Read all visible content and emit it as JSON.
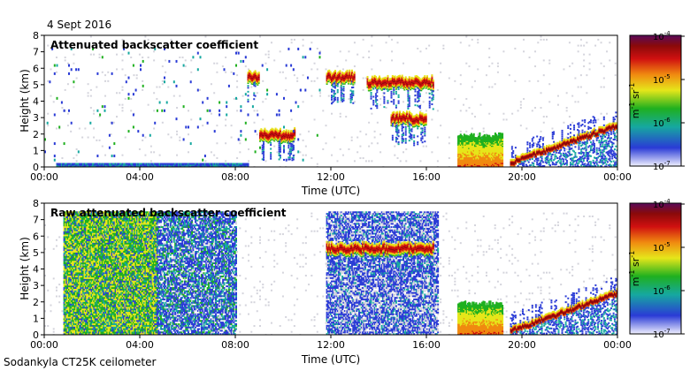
{
  "date_label": "4 Sept 2016",
  "footer_label": "Sodankyla CT25K ceilometer",
  "colors": {
    "background_noise": "#d4d4dc",
    "colormap": [
      "#f0f0ff",
      "#2a3bd6",
      "#16a8a0",
      "#1fb01f",
      "#e6e61a",
      "#f08a10",
      "#d01010",
      "#8a0a0a",
      "#5a0a5a"
    ],
    "axis": "#000000"
  },
  "chart_data": [
    {
      "type": "heatmap",
      "title": "Attenuated backscatter coefficient",
      "xlabel": "Time (UTC)",
      "ylabel": "Height (km)",
      "x_ticks": [
        "00:00",
        "04:00",
        "08:00",
        "12:00",
        "16:00",
        "20:00",
        "00:00"
      ],
      "x_tick_hours": [
        0,
        4,
        8,
        12,
        16,
        20,
        24
      ],
      "y_ticks": [
        0,
        1,
        2,
        3,
        4,
        5,
        6,
        7,
        8
      ],
      "xlim": [
        0,
        24
      ],
      "ylim": [
        0,
        8
      ],
      "colorbar": {
        "ticks": [
          "10",
          "10",
          "10",
          "10"
        ],
        "exponents": [
          "-7",
          "-6",
          "-5",
          "-4"
        ],
        "label_base": "m",
        "label_exp1": "-1",
        "label_mid": " sr",
        "label_exp2": "-1",
        "range": [
          1e-07,
          0.0001
        ],
        "scale": "log"
      },
      "features": [
        {
          "name": "boundary layer aerosol",
          "t_start": 0.5,
          "t_end": 8.5,
          "h_bottom": 0.0,
          "h_top": 0.25
        },
        {
          "name": "cloud layer",
          "t_start": 8.5,
          "t_end": 9.0,
          "h_center": 5.5
        },
        {
          "name": "cloud layer",
          "t_start": 9.0,
          "t_end": 10.5,
          "h_center": 2.0
        },
        {
          "name": "cloud layer",
          "t_start": 11.8,
          "t_end": 13.0,
          "h_center": 5.5
        },
        {
          "name": "cloud layer",
          "t_start": 13.5,
          "t_end": 16.3,
          "h_center": 5.2
        },
        {
          "name": "cloud layer",
          "t_start": 14.5,
          "t_end": 16.0,
          "h_center": 3.0
        },
        {
          "name": "precipitation",
          "t_start": 17.3,
          "t_end": 19.2,
          "h_bottom": 0.0,
          "h_top": 2.0
        },
        {
          "name": "rising cloud base",
          "t_start": 19.5,
          "t_end": 24.0,
          "h_start": 0.3,
          "h_end": 2.6
        }
      ]
    },
    {
      "type": "heatmap",
      "title": "Raw attenuated backscatter coefficient",
      "xlabel": "Time (UTC)",
      "ylabel": "Height (km)",
      "x_ticks": [
        "00:00",
        "04:00",
        "08:00",
        "12:00",
        "16:00",
        "20:00",
        "00:00"
      ],
      "x_tick_hours": [
        0,
        4,
        8,
        12,
        16,
        20,
        24
      ],
      "y_ticks": [
        0,
        1,
        2,
        3,
        4,
        5,
        6,
        7,
        8
      ],
      "xlim": [
        0,
        24
      ],
      "ylim": [
        0,
        8
      ],
      "data_top_km": 7.5,
      "colorbar": {
        "ticks": [
          "10",
          "10",
          "10",
          "10"
        ],
        "exponents": [
          "-7",
          "-6",
          "-5",
          "-4"
        ],
        "label_base": "m",
        "label_exp1": "-1",
        "label_mid": " sr",
        "label_exp2": "-1",
        "range": [
          1e-07,
          0.0001
        ],
        "scale": "log"
      },
      "features": [
        {
          "name": "high-noise daylight period",
          "t_start": 0.8,
          "t_end": 4.7,
          "h_bottom": 0.0,
          "h_top": 7.5
        },
        {
          "name": "moderate-noise period",
          "t_start": 4.7,
          "t_end": 8.0,
          "h_bottom": 0.0,
          "h_top": 7.5
        },
        {
          "name": "noisy period",
          "t_start": 11.8,
          "t_end": 16.5,
          "h_bottom": 0.0,
          "h_top": 7.5
        },
        {
          "name": "cloud layer",
          "t_start": 11.8,
          "t_end": 16.3,
          "h_center": 5.3
        },
        {
          "name": "precipitation",
          "t_start": 17.3,
          "t_end": 19.2,
          "h_bottom": 0.0,
          "h_top": 2.0
        },
        {
          "name": "rising cloud base",
          "t_start": 19.5,
          "t_end": 24.0,
          "h_start": 0.3,
          "h_end": 2.6
        }
      ]
    }
  ]
}
